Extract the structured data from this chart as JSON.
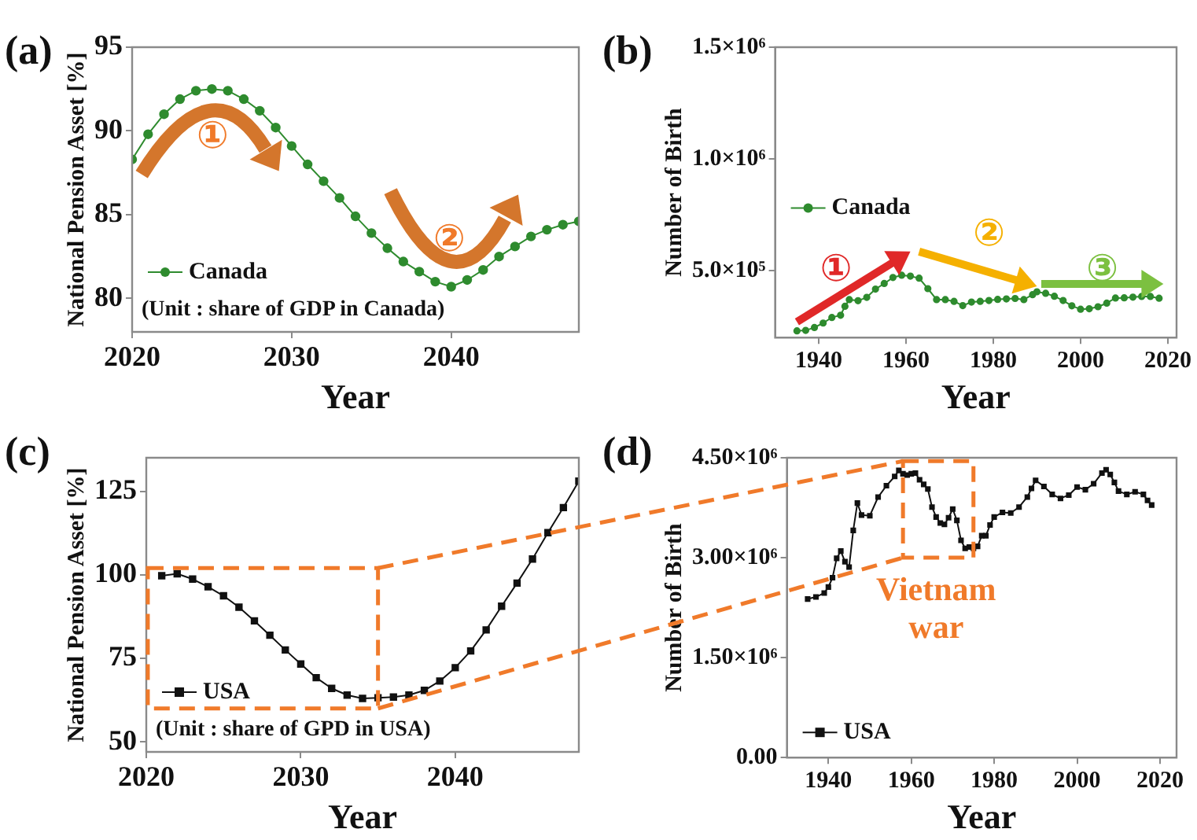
{
  "chart_data": [
    {
      "type": "line",
      "title": "(a)",
      "xlabel": "Year",
      "ylabel": "National Pension Asset [%]",
      "xlim": [
        2020,
        2048
      ],
      "ylim": [
        78,
        95
      ],
      "xticks": [
        2020,
        2030,
        2040
      ],
      "yticks": [
        80,
        85,
        90,
        95
      ],
      "legend": "bottom left",
      "marker": "circle",
      "series": [
        {
          "name": "Canada",
          "color": "#2e8b2e",
          "x": [
            2020,
            2021,
            2022,
            2023,
            2024,
            2025,
            2026,
            2027,
            2028,
            2029,
            2030,
            2031,
            2032,
            2033,
            2034,
            2035,
            2036,
            2037,
            2038,
            2039,
            2040,
            2041,
            2042,
            2043,
            2044,
            2045,
            2046,
            2047,
            2048
          ],
          "values": [
            88.3,
            89.8,
            91.0,
            91.9,
            92.4,
            92.5,
            92.4,
            91.9,
            91.2,
            90.2,
            89.1,
            88.0,
            87.0,
            86.0,
            84.9,
            83.9,
            83.0,
            82.2,
            81.6,
            81.0,
            80.7,
            81.1,
            81.7,
            82.5,
            83.1,
            83.7,
            84.1,
            84.4,
            84.6
          ]
        }
      ],
      "annotations": [
        "①",
        "②",
        "(Unit : share of GDP in Canada)"
      ]
    },
    {
      "type": "line",
      "title": "(b)",
      "xlabel": "Year",
      "ylabel": "Number of Birth",
      "xlim": [
        1930,
        2022
      ],
      "ylim": [
        200000,
        1500000
      ],
      "xticks": [
        1940,
        1960,
        1980,
        2000,
        2020
      ],
      "yticks": [
        {
          "value": 500000,
          "label": "5.0×10⁵"
        },
        {
          "value": 1000000,
          "label": "1.0×10⁶"
        },
        {
          "value": 1500000,
          "label": "1.5×10⁶"
        }
      ],
      "legend": "left",
      "marker": "circle",
      "series": [
        {
          "name": "Canada",
          "color": "#2e8b2e",
          "x": [
            1935,
            1937,
            1939,
            1941,
            1943,
            1945,
            1946,
            1947,
            1949,
            1951,
            1953,
            1955,
            1957,
            1959,
            1961,
            1963,
            1965,
            1967,
            1969,
            1971,
            1973,
            1975,
            1977,
            1979,
            1981,
            1983,
            1985,
            1987,
            1989,
            1990,
            1992,
            1994,
            1996,
            1998,
            2000,
            2002,
            2004,
            2006,
            2008,
            2010,
            2012,
            2014,
            2016,
            2018
          ],
          "values": [
            230000,
            232000,
            245000,
            265000,
            290000,
            300000,
            340000,
            370000,
            365000,
            380000,
            417000,
            442000,
            469000,
            479000,
            475000,
            466000,
            419000,
            370000,
            370000,
            362000,
            343000,
            359000,
            362000,
            366000,
            371000,
            373000,
            375000,
            370000,
            392000,
            405000,
            398000,
            385000,
            366000,
            342000,
            327000,
            329000,
            338000,
            354000,
            377000,
            378000,
            381000,
            384000,
            384000,
            376000
          ]
        }
      ],
      "annotations": [
        "①",
        "②",
        "③"
      ]
    },
    {
      "type": "line",
      "title": "(c)",
      "xlabel": "Year",
      "ylabel": "National Pension Asset [%]",
      "xlim": [
        2020,
        2048
      ],
      "ylim": [
        47,
        135
      ],
      "xticks": [
        2020,
        2030,
        2040
      ],
      "yticks": [
        50,
        75,
        100,
        125
      ],
      "legend": "bottom left",
      "marker": "square",
      "series": [
        {
          "name": "USA",
          "color": "#111111",
          "x": [
            2021,
            2022,
            2023,
            2024,
            2025,
            2026,
            2027,
            2028,
            2029,
            2030,
            2031,
            2032,
            2033,
            2034,
            2035,
            2036,
            2037,
            2038,
            2039,
            2040,
            2041,
            2042,
            2043,
            2044,
            2045,
            2046,
            2047,
            2048
          ],
          "values": [
            99.7,
            100.3,
            98.7,
            96.4,
            93.7,
            90.3,
            86.2,
            81.9,
            77.5,
            73.3,
            69.2,
            66.0,
            64.0,
            63.0,
            63.2,
            63.4,
            64.0,
            65.4,
            68.2,
            72.2,
            77.2,
            83.5,
            90.6,
            97.5,
            104.7,
            112.6,
            120.1,
            128.0
          ]
        }
      ],
      "annotations": [
        "(Unit : share of GPD in USA)"
      ]
    },
    {
      "type": "line",
      "title": "(d)",
      "xlabel": "Year",
      "ylabel": "Number of Birth",
      "xlim": [
        1930,
        2024
      ],
      "ylim": [
        0,
        4500000
      ],
      "xticks": [
        1940,
        1960,
        1980,
        2000,
        2020
      ],
      "yticks": [
        {
          "value": 0,
          "label": "0.00"
        },
        {
          "value": 1500000,
          "label": "1.50×10⁶"
        },
        {
          "value": 3000000,
          "label": "3.00×10⁶"
        },
        {
          "value": 4500000,
          "label": "4.50×10⁶"
        }
      ],
      "legend": "bottom left",
      "marker": "square",
      "series": [
        {
          "name": "USA",
          "color": "#111111",
          "x": [
            1935,
            1937,
            1939,
            1940,
            1941,
            1942,
            1943,
            1944,
            1945,
            1946,
            1947,
            1948,
            1950,
            1952,
            1954,
            1956,
            1957,
            1958,
            1959,
            1960,
            1961,
            1962,
            1963,
            1964,
            1965,
            1966,
            1967,
            1968,
            1969,
            1970,
            1971,
            1972,
            1973,
            1974,
            1975,
            1976,
            1977,
            1978,
            1979,
            1980,
            1982,
            1984,
            1986,
            1988,
            1989,
            1990,
            1992,
            1994,
            1996,
            1998,
            2000,
            2002,
            2004,
            2006,
            2007,
            2008,
            2009,
            2010,
            2012,
            2014,
            2016,
            2017,
            2018
          ],
          "values": [
            2380000,
            2410000,
            2470000,
            2560000,
            2700000,
            2990000,
            3100000,
            2940000,
            2860000,
            3410000,
            3820000,
            3640000,
            3630000,
            3910000,
            4080000,
            4220000,
            4310000,
            4260000,
            4240000,
            4260000,
            4270000,
            4170000,
            4100000,
            4030000,
            3760000,
            3610000,
            3520000,
            3500000,
            3600000,
            3730000,
            3560000,
            3260000,
            3140000,
            3160000,
            3140000,
            3170000,
            3330000,
            3330000,
            3490000,
            3610000,
            3680000,
            3670000,
            3760000,
            3910000,
            4040000,
            4160000,
            4070000,
            3950000,
            3890000,
            3940000,
            4060000,
            4020000,
            4110000,
            4270000,
            4320000,
            4250000,
            4130000,
            4000000,
            3950000,
            3990000,
            3950000,
            3860000,
            3790000
          ]
        }
      ],
      "annotations": [
        "Vietnam war"
      ]
    }
  ]
}
